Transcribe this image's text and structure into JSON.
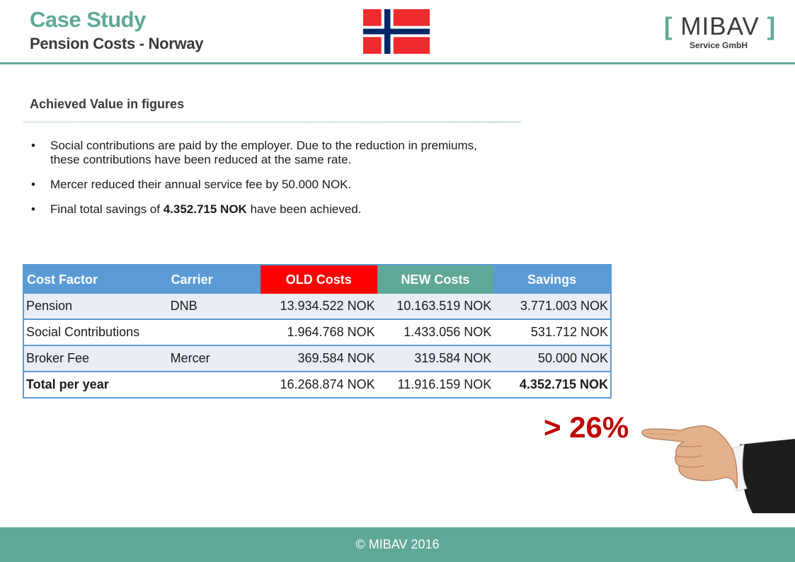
{
  "header": {
    "title": "Case Study",
    "subtitle": "Pension Costs - Norway",
    "flag_icon": "norway-flag-icon"
  },
  "logo": {
    "bracket_left": "[",
    "name": "MIBAV",
    "bracket_right": "]",
    "sub": "Service GmbH"
  },
  "section": {
    "title": "Achieved Value in figures"
  },
  "bullets": {
    "b1": "Social contributions are paid by the employer. Due to the reduction in premiums, these contributions have been reduced at the same rate.",
    "b2": "Mercer reduced their annual service fee by 50.000 NOK.",
    "b3_pre": "Final total savings of ",
    "b3_bold": "4.352.715 NOK",
    "b3_post": " have been achieved."
  },
  "table": {
    "headers": {
      "factor": "Cost Factor",
      "carrier": "Carrier",
      "old": "OLD Costs",
      "new": "NEW Costs",
      "savings": "Savings"
    },
    "rows": [
      {
        "factor": "Pension",
        "carrier": "DNB",
        "old": "13.934.522 NOK",
        "new": "10.163.519 NOK",
        "savings": "3.771.003 NOK"
      },
      {
        "factor": "Social Contributions",
        "carrier": "",
        "old": "1.964.768 NOK",
        "new": "1.433.056 NOK",
        "savings": "531.712 NOK"
      },
      {
        "factor": "Broker Fee",
        "carrier": "Mercer",
        "old": "369.584 NOK",
        "new": "319.584 NOK",
        "savings": "50.000 NOK"
      },
      {
        "factor": "Total per year",
        "carrier": "",
        "old": "16.268.874 NOK",
        "new": "11.916.159 NOK",
        "savings": "4.352.715 NOK"
      }
    ]
  },
  "highlight": {
    "percent": "> 26%",
    "hand_icon": "pointing-hand-icon"
  },
  "footer": {
    "text": "© MIBAV 2016"
  },
  "colors": {
    "accent": "#5fa897",
    "old_header": "#ff0000",
    "table_blue": "#5b9bd5",
    "percent_red": "#c00000"
  }
}
